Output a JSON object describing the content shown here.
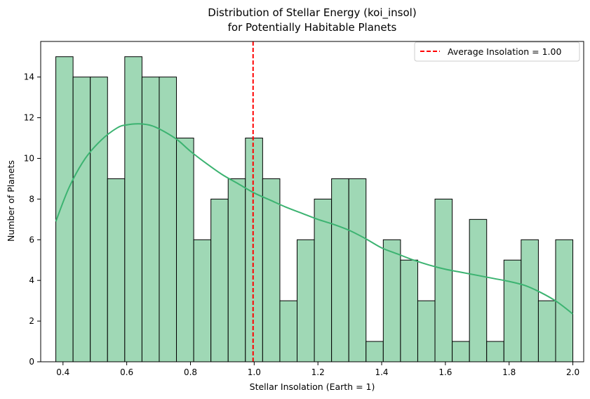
{
  "chart_data": {
    "type": "bar",
    "subtype": "histogram",
    "title_lines": [
      "Distribution of Stellar Energy (koi_insol)",
      "for Potentially Habitable Planets"
    ],
    "xlabel": "Stellar Insolation (Earth = 1)",
    "ylabel": "Number of Planets",
    "xlim": [
      0.33,
      2.034
    ],
    "ylim": [
      0,
      15.75
    ],
    "x_ticks": [
      0.4,
      0.6,
      0.8,
      1.0,
      1.2,
      1.4,
      1.6,
      1.8,
      2.0
    ],
    "x_tick_labels": [
      "0.4",
      "0.6",
      "0.8",
      "1.0",
      "1.2",
      "1.4",
      "1.6",
      "1.8",
      "2.0"
    ],
    "y_ticks": [
      0,
      2,
      4,
      6,
      8,
      10,
      12,
      14
    ],
    "y_tick_labels": [
      "0",
      "2",
      "4",
      "6",
      "8",
      "10",
      "12",
      "14"
    ],
    "grid": false,
    "bins": {
      "start": 0.3775,
      "end": 2.0,
      "count": 30,
      "fill_color": "#9fd8b5",
      "edge_color": "#000000",
      "values": [
        15,
        14,
        14,
        9,
        15,
        14,
        14,
        11,
        6,
        8,
        9,
        11,
        9,
        3,
        6,
        8,
        9,
        9,
        1,
        6,
        5,
        3,
        8,
        1,
        7,
        1,
        5,
        6,
        3,
        6
      ]
    },
    "kde": {
      "color": "#3cb371",
      "x": [
        0.3775,
        0.42,
        0.47,
        0.52,
        0.57,
        0.6,
        0.64,
        0.68,
        0.72,
        0.76,
        0.8,
        0.85,
        0.9,
        0.95,
        1.0,
        1.05,
        1.1,
        1.15,
        1.2,
        1.25,
        1.3,
        1.35,
        1.4,
        1.45,
        1.5,
        1.55,
        1.6,
        1.65,
        1.7,
        1.75,
        1.8,
        1.85,
        1.9,
        1.95,
        2.0
      ],
      "y": [
        6.9,
        8.6,
        10.0,
        10.9,
        11.5,
        11.65,
        11.7,
        11.6,
        11.3,
        10.9,
        10.35,
        9.75,
        9.2,
        8.75,
        8.3,
        7.95,
        7.6,
        7.3,
        7.0,
        6.75,
        6.45,
        6.05,
        5.6,
        5.3,
        5.0,
        4.75,
        4.55,
        4.4,
        4.25,
        4.1,
        3.95,
        3.75,
        3.4,
        2.95,
        2.35
      ]
    },
    "reference_line": {
      "x": 0.9965,
      "color": "#ff0000",
      "style": "dashed",
      "label": "Average Insolation = 1.00"
    },
    "legend": {
      "placement": "top-right",
      "entries": [
        "Average Insolation = 1.00"
      ]
    }
  }
}
